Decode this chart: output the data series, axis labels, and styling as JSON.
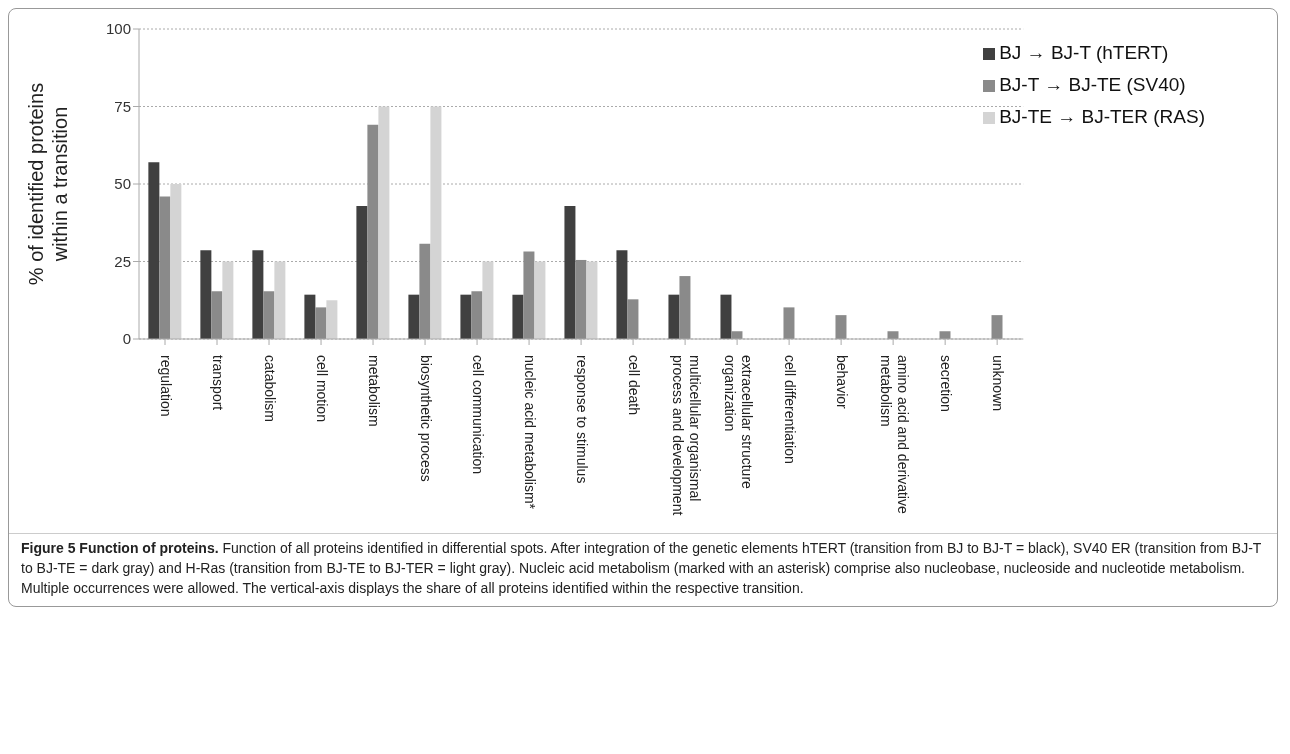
{
  "chart_data": {
    "type": "bar",
    "title": "Figure 5 Function of proteins.",
    "ylabel": "% of identified proteins within a transition",
    "categories": [
      "regulation",
      "transport",
      "catabolism",
      "cell motion",
      "metabolism",
      "biosynthetic process",
      "cell communication",
      "nucleic acid metabolism*",
      "response to stimulus",
      "cell death",
      "multicellular organismal process and development",
      "extracellular structure organization",
      "cell differentiation",
      "behavior",
      "amino acid and derivative metabolism",
      "secretion",
      "unknown"
    ],
    "series": [
      {
        "name": "BJ → BJ-T (hTERT)",
        "color": "#404040",
        "values": [
          57,
          28.6,
          28.6,
          14.3,
          42.9,
          14.3,
          14.3,
          14.3,
          42.9,
          28.6,
          14.3,
          14.3,
          null,
          null,
          null,
          null,
          null
        ]
      },
      {
        "name": "BJ-T → BJ-TE (SV40)",
        "color": "#8a8a8a",
        "values": [
          46,
          15.4,
          15.4,
          10.2,
          69.1,
          30.7,
          15.4,
          28.2,
          25.5,
          12.8,
          20.3,
          2.5,
          10.2,
          7.7,
          2.5,
          2.5,
          7.7
        ]
      },
      {
        "name": "BJ-TE → BJ-TER (RAS)",
        "color": "#d4d4d4",
        "values": [
          50,
          25,
          25,
          12.5,
          75,
          75,
          25,
          25,
          25,
          null,
          null,
          null,
          null,
          null,
          null,
          null,
          null
        ]
      }
    ],
    "ylim": [
      0,
      100
    ],
    "yticks": [
      0,
      25,
      50,
      75,
      100
    ],
    "grid": "y",
    "legend": "top right",
    "annotations": [
      "Function of all proteins identified in differential spots. After integration of the genetic elements hTERT (transition from BJ to BJ-T = black), SV40 ER (transition from BJ-T to BJ-TE = dark gray) and H-Ras (transition from BJ-TE to BJ-TER = light gray). Nucleic acid metabolism (marked with an asterisk) comprise also nucleobase, nucleoside and nucleotide metabolism. Multiple occurrences were allowed. The vertical-axis displays the share of all proteins identified within the respective transition."
    ]
  }
}
